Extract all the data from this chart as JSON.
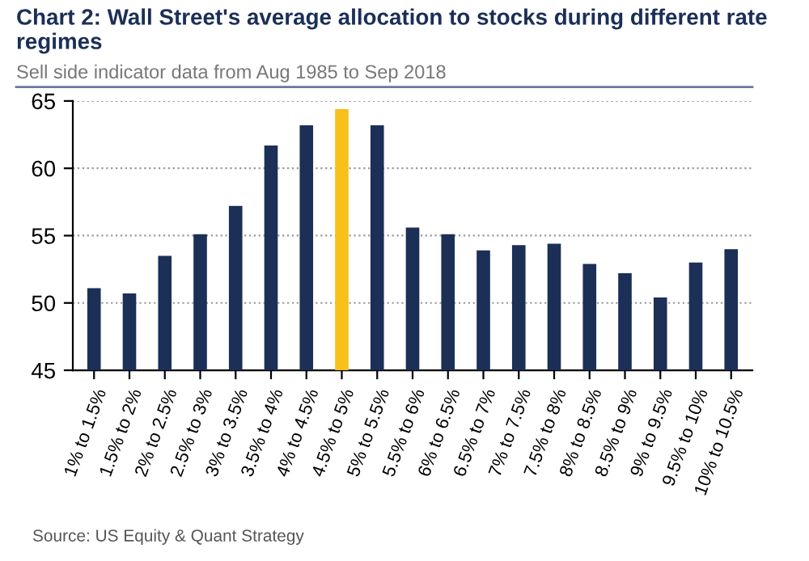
{
  "chart_data": {
    "type": "bar",
    "title": "Chart 2: Wall Street's average allocation to stocks during different rate regimes",
    "subtitle": "Sell side indicator data from Aug 1985 to Sep 2018",
    "categories": [
      "1% to 1.5%",
      "1.5% to 2%",
      "2% to 2.5%",
      "2.5% to 3%",
      "3% to 3.5%",
      "3.5% to 4%",
      "4% to 4.5%",
      "4.5% to 5%",
      "5% to 5.5%",
      "5.5% to 6%",
      "6% to 6.5%",
      "6.5% to 7%",
      "7% to 7.5%",
      "7.5% to 8%",
      "8% to 8.5%",
      "8.5% to 9%",
      "9% to 9.5%",
      "9.5% to 10%",
      "10% to 10.5%"
    ],
    "values": [
      51.1,
      50.7,
      53.5,
      55.1,
      57.2,
      61.7,
      63.2,
      64.4,
      63.2,
      55.6,
      55.1,
      53.9,
      54.3,
      54.4,
      52.9,
      52.2,
      50.4,
      53.0,
      54.0
    ],
    "colors": [
      "#1b2f57",
      "#1b2f57",
      "#1b2f57",
      "#1b2f57",
      "#1b2f57",
      "#1b2f57",
      "#1b2f57",
      "#f7c01a",
      "#1b2f57",
      "#1b2f57",
      "#1b2f57",
      "#1b2f57",
      "#1b2f57",
      "#1b2f57",
      "#1b2f57",
      "#1b2f57",
      "#1b2f57",
      "#1b2f57",
      "#1b2f57"
    ],
    "ylim": [
      45,
      65
    ],
    "yticks": [
      45,
      50,
      55,
      60,
      65
    ],
    "grid": "y",
    "legend": false,
    "annotations": [
      "Source: US Equity & Quant Strategy"
    ]
  }
}
